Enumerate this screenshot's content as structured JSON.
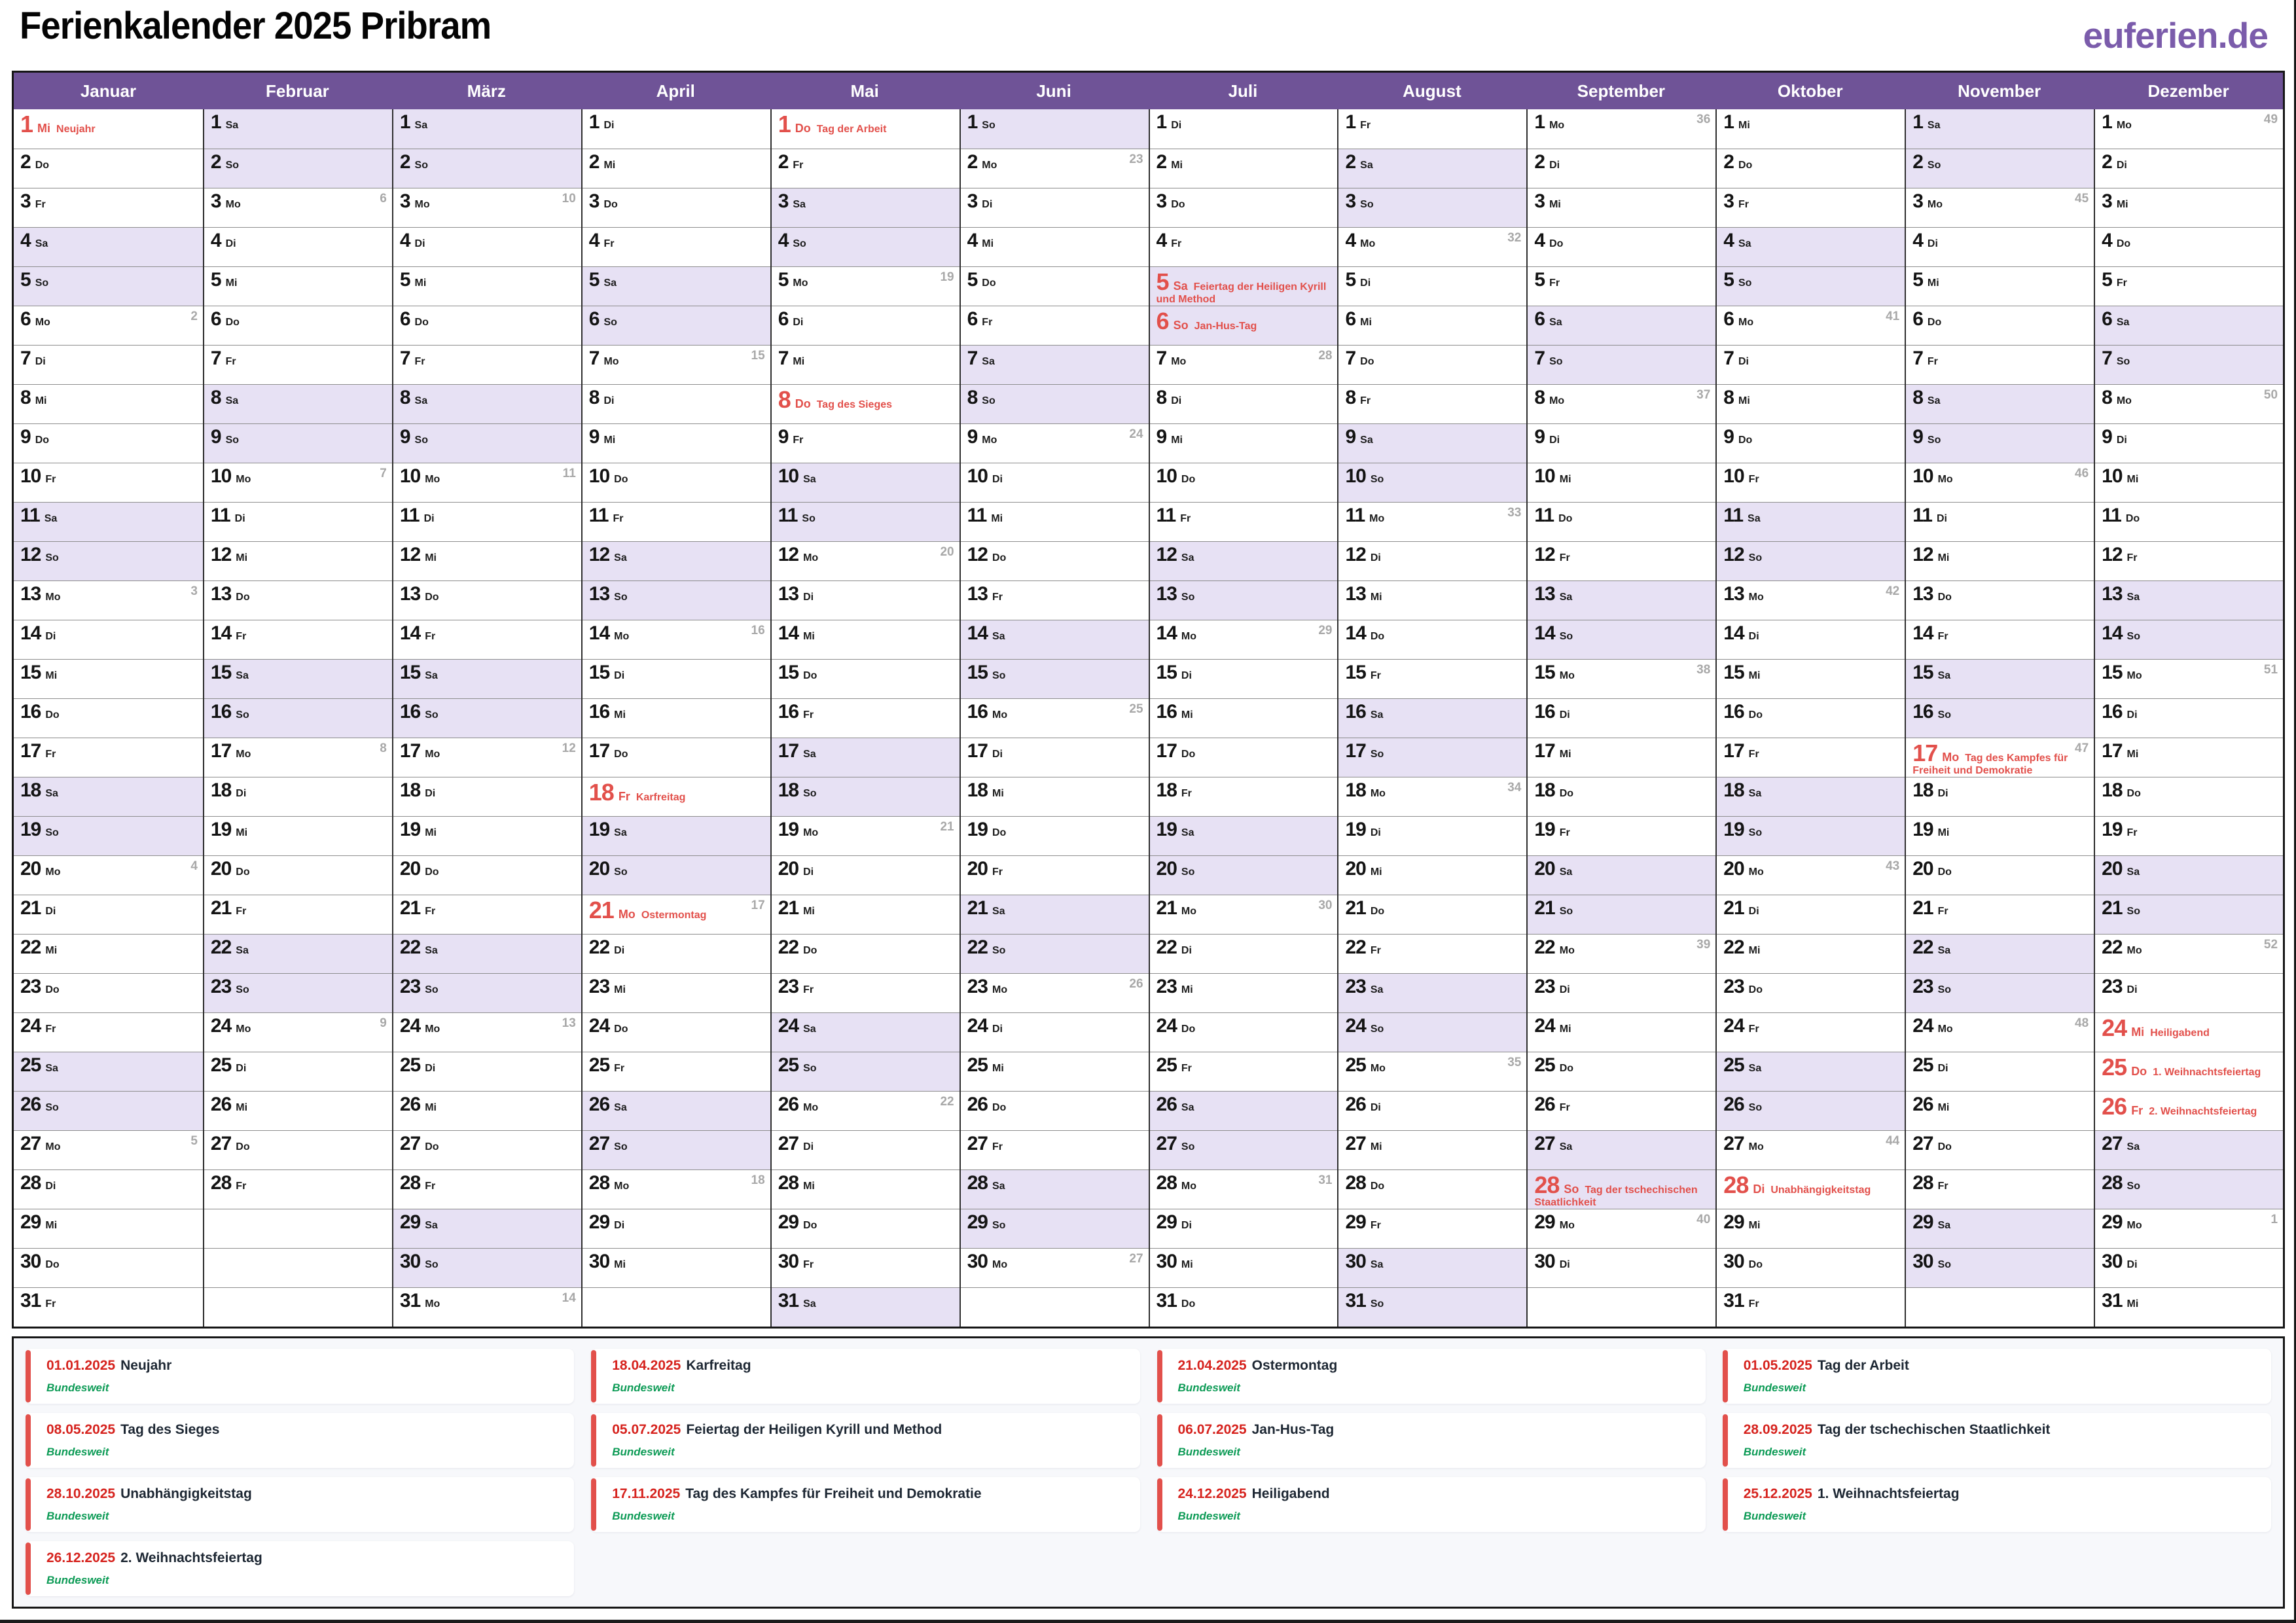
{
  "page": {
    "title": "Ferienkalender 2025 Pribram",
    "logo": "euferien.de"
  },
  "colors": {
    "header_purple": "#6f5397",
    "logo_purple": "#7b5cab",
    "weekend_lavender": "#e7e1f4",
    "holiday_red": "#e2504b",
    "legend_date_red": "#d6231e",
    "legend_bar_red": "#e2504b",
    "region_green": "#0d9b56",
    "week_number_gray": "#a8a8a8",
    "legend_bg": "#f7f8fb",
    "frame_dark": "#151515"
  },
  "weekday_cycle": [
    "Mo",
    "Di",
    "Mi",
    "Do",
    "Fr",
    "Sa",
    "So"
  ],
  "weekend_days": [
    "Sa",
    "So"
  ],
  "months": [
    {
      "name": "Januar",
      "days": 31,
      "first_weekday": "Mi",
      "week_numbers": {
        "6": 2,
        "13": 3,
        "20": 4,
        "27": 5
      },
      "holidays": {
        "1": "Neujahr"
      }
    },
    {
      "name": "Februar",
      "days": 28,
      "first_weekday": "Sa",
      "week_numbers": {
        "3": 6,
        "10": 7,
        "17": 8,
        "24": 9
      },
      "holidays": {}
    },
    {
      "name": "März",
      "days": 31,
      "first_weekday": "Sa",
      "week_numbers": {
        "3": 10,
        "10": 11,
        "17": 12,
        "24": 13,
        "31": 14
      },
      "holidays": {}
    },
    {
      "name": "April",
      "days": 30,
      "first_weekday": "Di",
      "week_numbers": {
        "7": 15,
        "14": 16,
        "21": 17,
        "28": 18
      },
      "holidays": {
        "18": "Karfreitag",
        "21": "Ostermontag"
      }
    },
    {
      "name": "Mai",
      "days": 31,
      "first_weekday": "Do",
      "week_numbers": {
        "5": 19,
        "12": 20,
        "19": 21,
        "26": 22
      },
      "holidays": {
        "1": "Tag der Arbeit",
        "8": "Tag des Sieges"
      }
    },
    {
      "name": "Juni",
      "days": 30,
      "first_weekday": "So",
      "week_numbers": {
        "2": 23,
        "9": 24,
        "16": 25,
        "23": 26,
        "30": 27
      },
      "holidays": {}
    },
    {
      "name": "Juli",
      "days": 31,
      "first_weekday": "Di",
      "week_numbers": {
        "7": 28,
        "14": 29,
        "21": 30,
        "28": 31
      },
      "holidays": {
        "5": "Feiertag der Heiligen Kyrill und Method",
        "6": "Jan-Hus-Tag"
      }
    },
    {
      "name": "August",
      "days": 31,
      "first_weekday": "Fr",
      "week_numbers": {
        "4": 32,
        "11": 33,
        "18": 34,
        "25": 35
      },
      "holidays": {}
    },
    {
      "name": "September",
      "days": 30,
      "first_weekday": "Mo",
      "week_numbers": {
        "1": 36,
        "8": 37,
        "15": 38,
        "22": 39,
        "29": 40
      },
      "holidays": {
        "28": "Tag der tschechischen Staatlichkeit"
      }
    },
    {
      "name": "Oktober",
      "days": 31,
      "first_weekday": "Mi",
      "week_numbers": {
        "6": 41,
        "13": 42,
        "20": 43,
        "27": 44
      },
      "holidays": {
        "28": "Unabhängigkeitstag"
      }
    },
    {
      "name": "November",
      "days": 30,
      "first_weekday": "Sa",
      "week_numbers": {
        "3": 45,
        "10": 46,
        "17": 47,
        "24": 48
      },
      "holidays": {
        "17": "Tag des Kampfes für Freiheit und Demokratie"
      }
    },
    {
      "name": "Dezember",
      "days": 31,
      "first_weekday": "Mo",
      "week_numbers": {
        "1": 49,
        "8": 50,
        "15": 51,
        "22": 52,
        "29": 1
      },
      "holidays": {
        "24": "Heiligabend",
        "25": "1. Weihnachtsfeiertag",
        "26": "2. Weihnachtsfeiertag"
      }
    }
  ],
  "legend": {
    "region_label": "Bundesweit",
    "entries": [
      {
        "date": "01.01.2025",
        "name": "Neujahr"
      },
      {
        "date": "18.04.2025",
        "name": "Karfreitag"
      },
      {
        "date": "21.04.2025",
        "name": "Ostermontag"
      },
      {
        "date": "01.05.2025",
        "name": "Tag der Arbeit"
      },
      {
        "date": "08.05.2025",
        "name": "Tag des Sieges"
      },
      {
        "date": "05.07.2025",
        "name": "Feiertag der Heiligen Kyrill und Method"
      },
      {
        "date": "06.07.2025",
        "name": "Jan-Hus-Tag"
      },
      {
        "date": "28.09.2025",
        "name": "Tag der tschechischen Staatlichkeit"
      },
      {
        "date": "28.10.2025",
        "name": "Unabhängigkeitstag"
      },
      {
        "date": "17.11.2025",
        "name": "Tag des Kampfes für Freiheit und Demokratie"
      },
      {
        "date": "24.12.2025",
        "name": "Heiligabend"
      },
      {
        "date": "25.12.2025",
        "name": "1. Weihnachtsfeiertag"
      },
      {
        "date": "26.12.2025",
        "name": "2. Weihnachtsfeiertag"
      }
    ]
  }
}
